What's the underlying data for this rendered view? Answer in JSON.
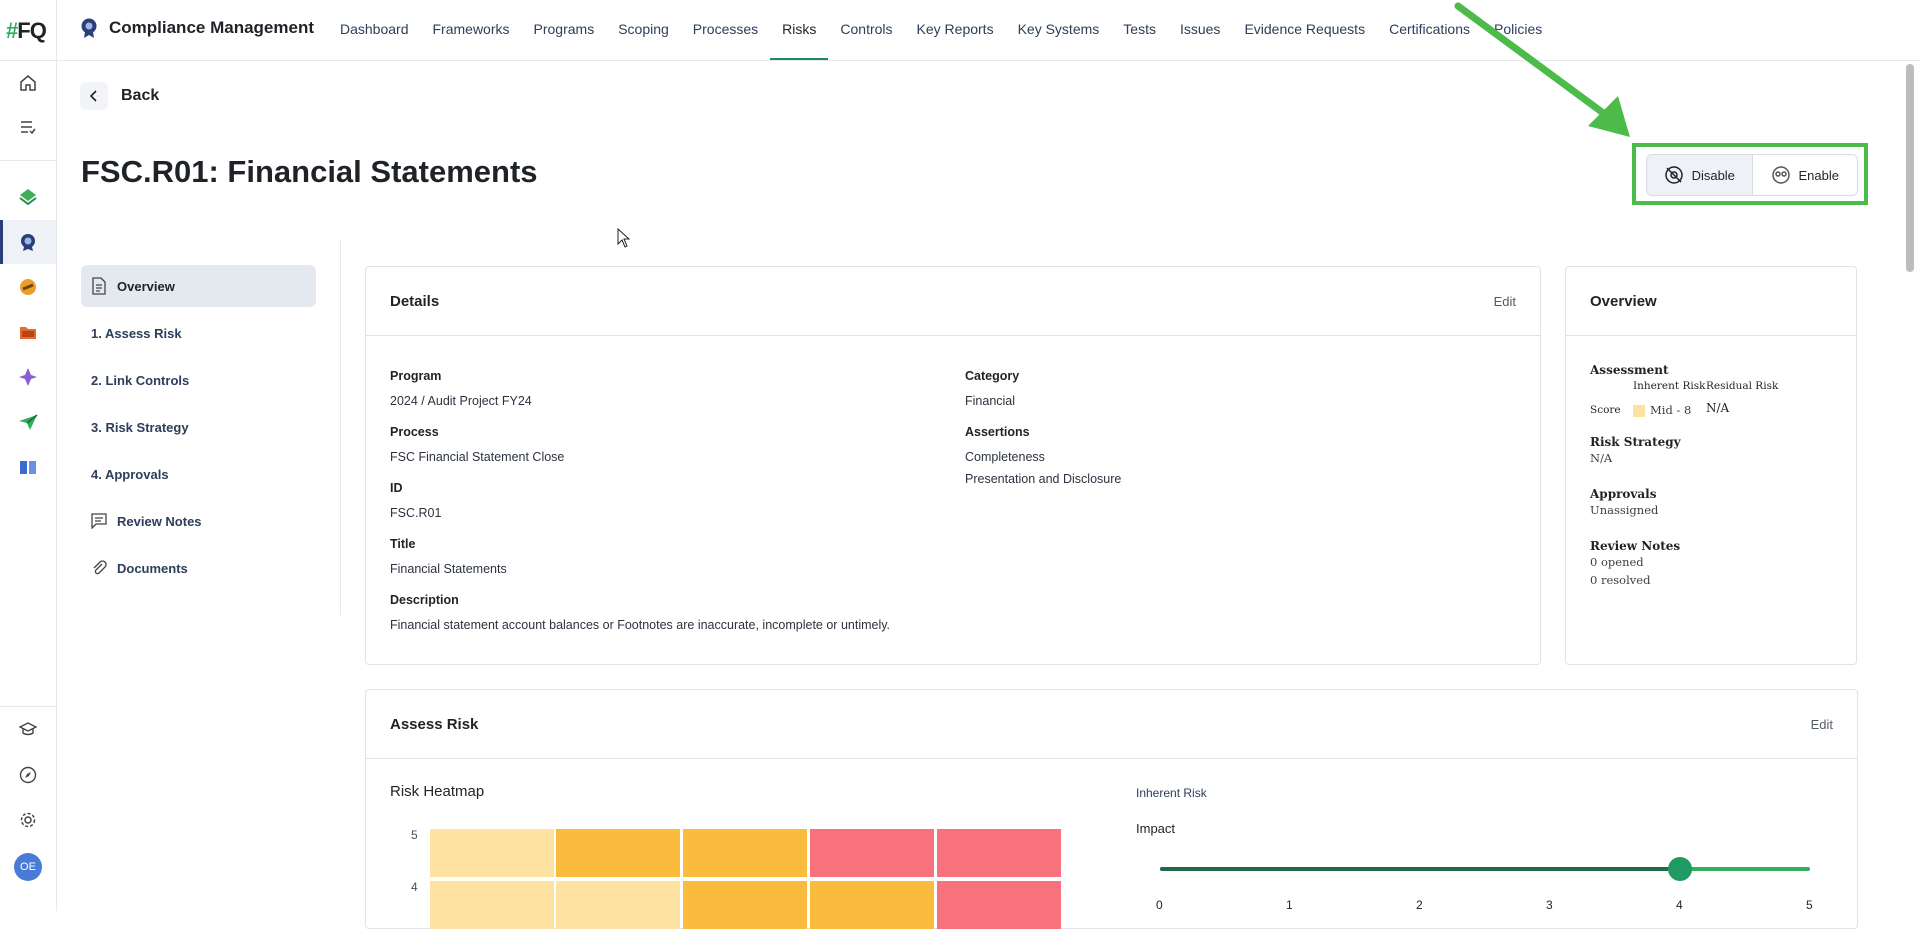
{
  "rail": {
    "logo_hash": "#",
    "logo_text": "FQ",
    "avatar_initials": "OE"
  },
  "header": {
    "app_title": "Compliance Management",
    "nav": [
      "Dashboard",
      "Frameworks",
      "Programs",
      "Scoping",
      "Processes",
      "Risks",
      "Controls",
      "Key Reports",
      "Key Systems",
      "Tests",
      "Issues",
      "Evidence Requests",
      "Certifications",
      "Policies"
    ],
    "active_nav": "Risks"
  },
  "page": {
    "back_label": "Back",
    "title": "FSC.R01: Financial Statements",
    "toggle": {
      "disable_label": "Disable",
      "enable_label": "Enable",
      "selected": "Disable"
    }
  },
  "side_menu": [
    "Overview",
    "1. Assess Risk",
    "2. Link Controls",
    "3. Risk Strategy",
    "4. Approvals",
    "Review Notes",
    "Documents"
  ],
  "details": {
    "title": "Details",
    "edit_label": "Edit",
    "program_label": "Program",
    "program_value": "2024 / Audit Project FY24",
    "process_label": "Process",
    "process_value": "FSC Financial Statement Close",
    "id_label": "ID",
    "id_value": "FSC.R01",
    "title_label": "Title",
    "title_value": "Financial Statements",
    "description_label": "Description",
    "description_value": "Financial statement account balances or Footnotes are inaccurate, incomplete or untimely.",
    "category_label": "Category",
    "category_value": "Financial",
    "assertions_label": "Assertions",
    "assertions": [
      "Completeness",
      "Presentation and Disclosure"
    ]
  },
  "overview": {
    "title": "Overview",
    "assessment_label": "Assessment",
    "inherent_risk_label": "Inherent Risk",
    "residual_risk_label": "Residual Risk",
    "score_label": "Score",
    "inherent_score": "Mid - 8",
    "residual_score": "N/A",
    "risk_strategy_label": "Risk Strategy",
    "risk_strategy_value": "N/A",
    "approvals_label": "Approvals",
    "approvals_value": "Unassigned",
    "review_notes_label": "Review Notes",
    "review_opened": "0 opened",
    "review_resolved": "0 resolved"
  },
  "assess": {
    "title": "Assess Risk",
    "edit_label": "Edit",
    "heatmap_title": "Risk Heatmap",
    "heatmap_y_labels": [
      "5",
      "4"
    ],
    "heatmap_rows": [
      [
        "#fde2a2",
        "#fbbb3c",
        "#fbbb3c",
        "#f7727c",
        "#f7727c"
      ],
      [
        "#fde2a2",
        "#fde2a2",
        "#fbbb3c",
        "#fbbb3c",
        "#f7727c"
      ]
    ],
    "inherent_risk_label": "Inherent Risk",
    "impact_label": "Impact",
    "impact_value": 4,
    "scale_ticks": [
      "0",
      "1",
      "2",
      "3",
      "4",
      "5"
    ]
  },
  "colors": {
    "accent": "#1f8a5b",
    "annotation": "#4cbb4a"
  }
}
